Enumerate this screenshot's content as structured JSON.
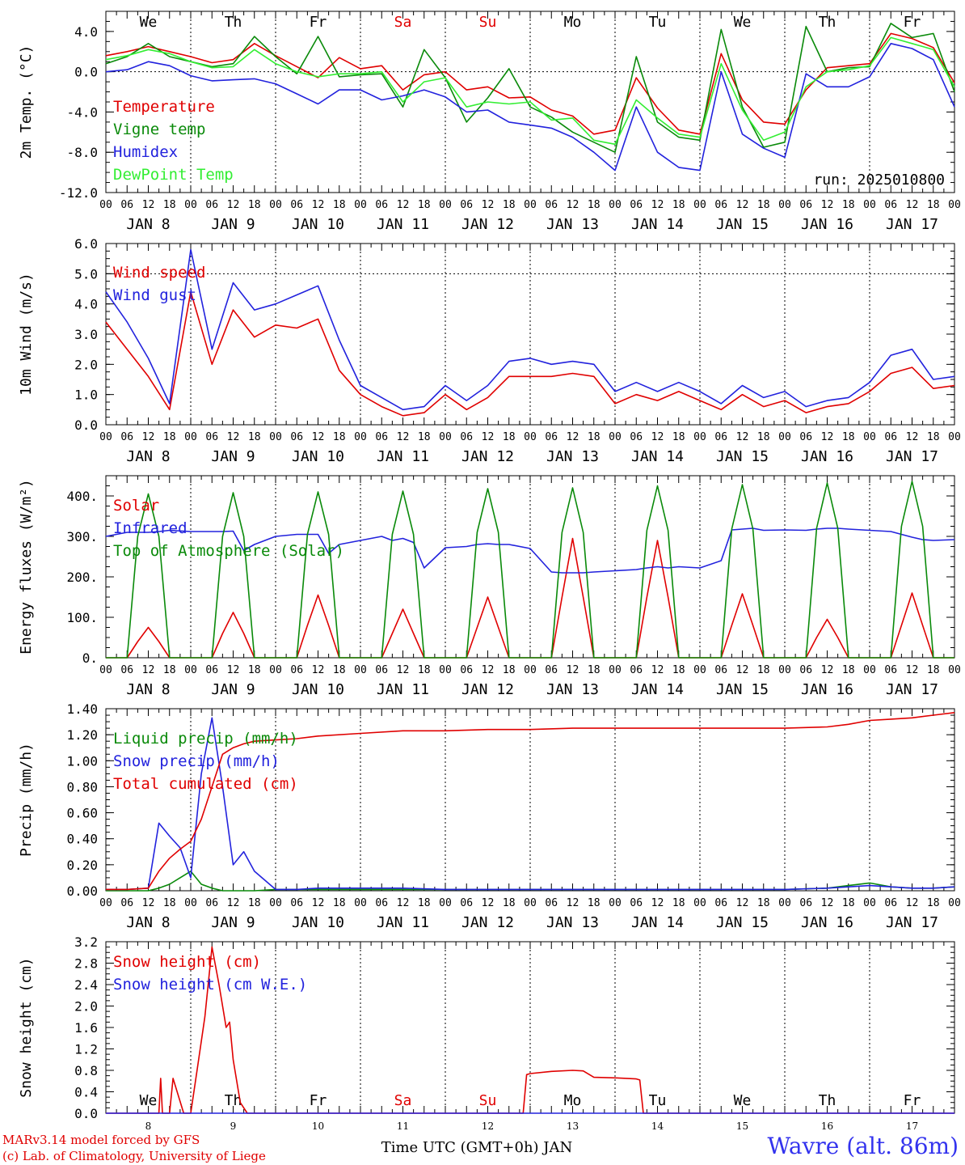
{
  "chart_data": [
    {
      "type": "line",
      "ylabel": "2m Temp. (°C)",
      "ylim": [
        -12,
        6
      ],
      "yticks": [
        "-12.0",
        "-8.0",
        "-4.0",
        "0.0",
        "4.0"
      ],
      "ytick_values": [
        -12,
        -8,
        -4,
        0,
        4
      ],
      "weekdays": [
        "We",
        "Th",
        "Fr",
        "Sa",
        "Su",
        "Mo",
        "Tu",
        "We",
        "Th",
        "Fr"
      ],
      "weekday_colors": [
        "#000000",
        "#000000",
        "#000000",
        "#e00000",
        "#e00000",
        "#000000",
        "#000000",
        "#000000",
        "#000000",
        "#000000"
      ],
      "hour_ticks": [
        "00",
        "06",
        "12",
        "18"
      ],
      "day_labels": [
        "JAN  8",
        "JAN  9",
        "JAN 10",
        "JAN 11",
        "JAN 12",
        "JAN 13",
        "JAN 14",
        "JAN 15",
        "JAN 16",
        "JAN 17"
      ],
      "annotation": "run: 2025010800",
      "reference_lines": [
        0
      ],
      "x_hours": [
        0,
        6,
        12,
        18,
        24,
        30,
        36,
        42,
        48,
        54,
        60,
        66,
        72,
        78,
        84,
        90,
        96,
        102,
        108,
        114,
        120,
        126,
        132,
        138,
        144,
        150,
        156,
        162,
        168,
        174,
        180,
        186,
        192,
        198,
        204,
        210,
        216,
        222,
        228,
        234,
        240
      ],
      "series": [
        {
          "name": "Temperature",
          "color": "#e00000",
          "values": [
            1.6,
            2.0,
            2.5,
            2.0,
            1.5,
            0.9,
            1.2,
            2.8,
            1.6,
            0.5,
            -0.6,
            1.4,
            0.3,
            0.6,
            -1.8,
            -0.3,
            0.0,
            -1.8,
            -1.5,
            -2.6,
            -2.5,
            -3.8,
            -4.4,
            -6.2,
            -5.8,
            -0.6,
            -3.6,
            -5.8,
            -6.2,
            1.8,
            -2.8,
            -5.0,
            -5.2,
            -1.8,
            0.4,
            0.6,
            0.8,
            3.8,
            3.3,
            2.4,
            -1.1
          ]
        },
        {
          "name": "Vigne temp",
          "color": "#0a8a0a",
          "values": [
            0.8,
            1.5,
            2.8,
            1.5,
            1.0,
            0.5,
            0.8,
            3.5,
            1.5,
            -0.2,
            3.5,
            -0.5,
            -0.3,
            -0.2,
            -3.5,
            2.2,
            -0.6,
            -5.0,
            -2.6,
            0.3,
            -3.5,
            -4.5,
            -6.0,
            -7.0,
            -8.0,
            1.5,
            -5.0,
            -6.5,
            -6.8,
            4.2,
            -3.5,
            -7.5,
            -7.0,
            4.5,
            0.0,
            0.4,
            0.5,
            4.8,
            3.4,
            3.8,
            -2.0
          ]
        },
        {
          "name": "Humidex",
          "color": "#2222dd",
          "values": [
            0.0,
            0.2,
            1.0,
            0.6,
            -0.4,
            -0.9,
            -0.8,
            -0.7,
            -1.2,
            -2.2,
            -3.2,
            -1.8,
            -1.8,
            -2.8,
            -2.4,
            -1.8,
            -2.5,
            -4.0,
            -3.8,
            -5.0,
            -5.3,
            -5.6,
            -6.5,
            -8.0,
            -9.8,
            -3.5,
            -8.0,
            -9.5,
            -9.8,
            0.0,
            -6.2,
            -7.6,
            -8.5,
            -0.2,
            -1.5,
            -1.5,
            -0.5,
            2.8,
            2.3,
            1.2,
            -3.5
          ]
        },
        {
          "name": "DewPoint Temp",
          "color": "#33ee33",
          "values": [
            1.2,
            1.6,
            2.2,
            1.8,
            1.0,
            0.4,
            0.5,
            2.2,
            0.8,
            0.0,
            -0.5,
            -0.2,
            -0.2,
            0.0,
            -3.0,
            -1.0,
            -0.6,
            -3.5,
            -3.0,
            -3.2,
            -3.0,
            -4.8,
            -4.6,
            -6.8,
            -7.2,
            -2.8,
            -4.6,
            -6.2,
            -6.5,
            0.8,
            -3.8,
            -6.8,
            -6.0,
            -1.5,
            0.0,
            0.2,
            0.6,
            3.4,
            2.8,
            2.2,
            -1.5
          ]
        }
      ]
    },
    {
      "type": "line",
      "ylabel": "10m Wind (m/s)",
      "ylim": [
        0,
        6
      ],
      "yticks": [
        "0.0",
        "1.0",
        "2.0",
        "3.0",
        "4.0",
        "5.0",
        "6.0"
      ],
      "ytick_values": [
        0,
        1,
        2,
        3,
        4,
        5,
        6
      ],
      "hour_ticks": [
        "00",
        "06",
        "12",
        "18"
      ],
      "day_labels": [
        "JAN  8",
        "JAN  9",
        "JAN 10",
        "JAN 11",
        "JAN 12",
        "JAN 13",
        "JAN 14",
        "JAN 15",
        "JAN 16",
        "JAN 17"
      ],
      "reference_lines": [
        5
      ],
      "x_hours": [
        0,
        6,
        12,
        18,
        24,
        30,
        36,
        42,
        48,
        54,
        60,
        66,
        72,
        78,
        84,
        90,
        96,
        102,
        108,
        114,
        120,
        126,
        132,
        138,
        144,
        150,
        156,
        162,
        168,
        174,
        180,
        186,
        192,
        198,
        204,
        210,
        216,
        222,
        228,
        234,
        240
      ],
      "series": [
        {
          "name": "Wind speed",
          "color": "#e00000",
          "values": [
            3.4,
            2.5,
            1.6,
            0.5,
            4.4,
            2.0,
            3.8,
            2.9,
            3.3,
            3.2,
            3.5,
            1.8,
            1.0,
            0.6,
            0.3,
            0.4,
            1.0,
            0.5,
            0.9,
            1.6,
            1.6,
            1.6,
            1.7,
            1.6,
            0.7,
            1.0,
            0.8,
            1.1,
            0.8,
            0.5,
            1.0,
            0.6,
            0.8,
            0.4,
            0.6,
            0.7,
            1.1,
            1.7,
            1.9,
            1.2,
            1.3
          ]
        },
        {
          "name": "Wind gust",
          "color": "#2222dd",
          "values": [
            4.4,
            3.4,
            2.2,
            0.7,
            5.8,
            2.5,
            4.7,
            3.8,
            4.0,
            4.3,
            4.6,
            2.8,
            1.3,
            0.9,
            0.5,
            0.6,
            1.3,
            0.8,
            1.3,
            2.1,
            2.2,
            2.0,
            2.1,
            2.0,
            1.1,
            1.4,
            1.1,
            1.4,
            1.1,
            0.7,
            1.3,
            0.9,
            1.1,
            0.6,
            0.8,
            0.9,
            1.4,
            2.3,
            2.5,
            1.5,
            1.6
          ]
        }
      ]
    },
    {
      "type": "line",
      "ylabel": "Energy fluxes (W/m²)",
      "ylim": [
        0,
        450
      ],
      "yticks": [
        "0.",
        "100.",
        "200.",
        "300.",
        "400."
      ],
      "ytick_values": [
        0,
        100,
        200,
        300,
        400
      ],
      "hour_ticks": [
        "00",
        "06",
        "12",
        "18"
      ],
      "day_labels": [
        "JAN  8",
        "JAN  9",
        "JAN 10",
        "JAN 11",
        "JAN 12",
        "JAN 13",
        "JAN 14",
        "JAN 15",
        "JAN 16",
        "JAN 17"
      ],
      "reference_lines": [],
      "x_hours": [
        0,
        6,
        9,
        12,
        15,
        18,
        24,
        30,
        33,
        36,
        39,
        42,
        48,
        54,
        57,
        60,
        63,
        66,
        72,
        78,
        81,
        84,
        87,
        90,
        96,
        102,
        105,
        108,
        111,
        114,
        120,
        126,
        129,
        132,
        135,
        138,
        144,
        150,
        153,
        156,
        159,
        162,
        168,
        174,
        177,
        180,
        183,
        186,
        192,
        198,
        201,
        204,
        207,
        210,
        216,
        222,
        225,
        228,
        231,
        234,
        240
      ],
      "series": [
        {
          "name": "Solar",
          "color": "#e00000",
          "values": [
            0,
            0,
            40,
            75,
            40,
            0,
            0,
            0,
            60,
            112,
            60,
            0,
            0,
            0,
            80,
            155,
            80,
            0,
            0,
            0,
            60,
            120,
            60,
            0,
            0,
            0,
            75,
            150,
            75,
            0,
            0,
            0,
            150,
            295,
            150,
            0,
            0,
            0,
            150,
            290,
            150,
            0,
            0,
            0,
            80,
            158,
            80,
            0,
            0,
            0,
            50,
            95,
            50,
            0,
            0,
            0,
            80,
            160,
            80,
            0,
            0
          ]
        },
        {
          "name": "Infrared",
          "color": "#2222dd",
          "values": [
            300,
            310,
            310,
            310,
            312,
            315,
            312,
            312,
            312,
            313,
            265,
            280,
            300,
            305,
            305,
            305,
            258,
            280,
            290,
            300,
            290,
            295,
            285,
            222,
            272,
            275,
            280,
            282,
            280,
            280,
            270,
            212,
            210,
            210,
            210,
            212,
            215,
            218,
            222,
            225,
            222,
            225,
            222,
            240,
            316,
            318,
            320,
            315,
            316,
            315,
            318,
            320,
            320,
            318,
            315,
            312,
            305,
            298,
            292,
            290,
            292
          ]
        },
        {
          "name": "Top of Atmosphere (Solar)",
          "color": "#0a8a0a",
          "values": [
            0,
            0,
            300,
            405,
            300,
            0,
            0,
            0,
            300,
            408,
            300,
            0,
            0,
            0,
            305,
            410,
            305,
            0,
            0,
            0,
            305,
            412,
            305,
            0,
            0,
            0,
            310,
            418,
            310,
            0,
            0,
            0,
            310,
            420,
            310,
            0,
            0,
            0,
            315,
            425,
            315,
            0,
            0,
            0,
            318,
            428,
            318,
            0,
            0,
            0,
            320,
            432,
            320,
            0,
            0,
            0,
            325,
            436,
            325,
            0,
            0
          ]
        }
      ]
    },
    {
      "type": "line",
      "ylabel": "Precip (mm/h)",
      "ylim": [
        0,
        1.4
      ],
      "yticks": [
        "0.00",
        "0.20",
        "0.40",
        "0.60",
        "0.80",
        "1.00",
        "1.20",
        "1.40"
      ],
      "ytick_values": [
        0,
        0.2,
        0.4,
        0.6,
        0.8,
        1.0,
        1.2,
        1.4
      ],
      "hour_ticks": [
        "00",
        "06",
        "12",
        "18"
      ],
      "day_labels": [
        "JAN  8",
        "JAN  9",
        "JAN 10",
        "JAN 11",
        "JAN 12",
        "JAN 13",
        "JAN 14",
        "JAN 15",
        "JAN 16",
        "JAN 17"
      ],
      "reference_lines": [],
      "x_hours": [
        0,
        6,
        12,
        15,
        18,
        21,
        24,
        27,
        30,
        33,
        36,
        39,
        42,
        48,
        54,
        60,
        72,
        84,
        96,
        108,
        120,
        132,
        144,
        156,
        168,
        180,
        192,
        204,
        210,
        216,
        222,
        228,
        234,
        240
      ],
      "series": [
        {
          "name": "Liquid precip (mm/h)",
          "color": "#0a8a0a",
          "values": [
            0,
            0,
            0,
            0.02,
            0.05,
            0.1,
            0.15,
            0.05,
            0.02,
            0,
            0,
            0,
            0,
            0.01,
            0.01,
            0.01,
            0.01,
            0.01,
            0.01,
            0.01,
            0.01,
            0.01,
            0.01,
            0.01,
            0.01,
            0.01,
            0.01,
            0.02,
            0.04,
            0.06,
            0.03,
            0.02,
            0.02,
            0.03
          ]
        },
        {
          "name": "Snow precip (mm/h)",
          "color": "#2222dd",
          "values": [
            0.01,
            0.01,
            0.02,
            0.52,
            0.42,
            0.33,
            0.1,
            0.9,
            1.33,
            0.8,
            0.2,
            0.3,
            0.15,
            0.01,
            0.01,
            0.02,
            0.02,
            0.02,
            0.01,
            0.01,
            0.01,
            0.01,
            0.01,
            0.01,
            0.01,
            0.01,
            0.01,
            0.02,
            0.03,
            0.04,
            0.03,
            0.02,
            0.02,
            0.03
          ]
        },
        {
          "name": "Total cumulated (cm)",
          "color": "#e00000",
          "values": [
            0.01,
            0.01,
            0.02,
            0.15,
            0.25,
            0.32,
            0.38,
            0.55,
            0.8,
            1.05,
            1.1,
            1.13,
            1.15,
            1.16,
            1.17,
            1.19,
            1.21,
            1.23,
            1.23,
            1.24,
            1.24,
            1.25,
            1.25,
            1.25,
            1.25,
            1.25,
            1.25,
            1.26,
            1.28,
            1.31,
            1.32,
            1.33,
            1.35,
            1.37
          ]
        }
      ]
    },
    {
      "type": "line",
      "ylabel": "Snow height (cm)",
      "ylim": [
        0,
        3.2
      ],
      "yticks": [
        "0.0",
        "0.4",
        "0.8",
        "1.2",
        "1.6",
        "2.0",
        "2.4",
        "2.8",
        "3.2"
      ],
      "ytick_values": [
        0,
        0.4,
        0.8,
        1.2,
        1.6,
        2.0,
        2.4,
        2.8,
        3.2
      ],
      "weekdays": [
        "We",
        "Th",
        "Fr",
        "Sa",
        "Su",
        "Mo",
        "Tu",
        "We",
        "Th",
        "Fr"
      ],
      "weekday_colors": [
        "#000000",
        "#000000",
        "#000000",
        "#e00000",
        "#e00000",
        "#000000",
        "#000000",
        "#000000",
        "#000000",
        "#000000"
      ],
      "date_labels": [
        "8",
        "9",
        "10",
        "11",
        "12",
        "13",
        "14",
        "15",
        "16",
        "17"
      ],
      "reference_lines": [],
      "x_hours": [
        0,
        12,
        15,
        15.5,
        16,
        17,
        18,
        19,
        22,
        23,
        24,
        26,
        28,
        30,
        32,
        34,
        35,
        36,
        38,
        40,
        48,
        60,
        96,
        108,
        118,
        119,
        120,
        126,
        132,
        135,
        138,
        144,
        150,
        151,
        152,
        168,
        240
      ],
      "series": [
        {
          "name": "Snow height (cm)",
          "color": "#e00000",
          "values": [
            0,
            0,
            0,
            0.65,
            0,
            0,
            0,
            0.65,
            0,
            0,
            0,
            0.9,
            1.8,
            3.1,
            2.4,
            1.6,
            1.7,
            1.0,
            0.2,
            0,
            0,
            0,
            0,
            0,
            0,
            0.72,
            0.74,
            0.78,
            0.8,
            0.79,
            0.67,
            0.66,
            0.64,
            0.62,
            0,
            0,
            0
          ]
        },
        {
          "name": "Snow height (cm W.E.)",
          "color": "#2222dd",
          "values": [
            0,
            0,
            0,
            0,
            0,
            0,
            0,
            0,
            0,
            0,
            0,
            0,
            0,
            0,
            0,
            0,
            0,
            0,
            0,
            0,
            0,
            0,
            0,
            0,
            0,
            0,
            0,
            0,
            0,
            0,
            0,
            0,
            0,
            0,
            0,
            0,
            0
          ]
        }
      ]
    }
  ],
  "footer": {
    "credit_line1": "MARv3.14 model forced by GFS",
    "credit_line2": "(c) Lab. of Climatology, University of Liege",
    "xlabel": "Time UTC (GMT+0h) JAN",
    "station": "Wavre (alt. 86m)"
  }
}
